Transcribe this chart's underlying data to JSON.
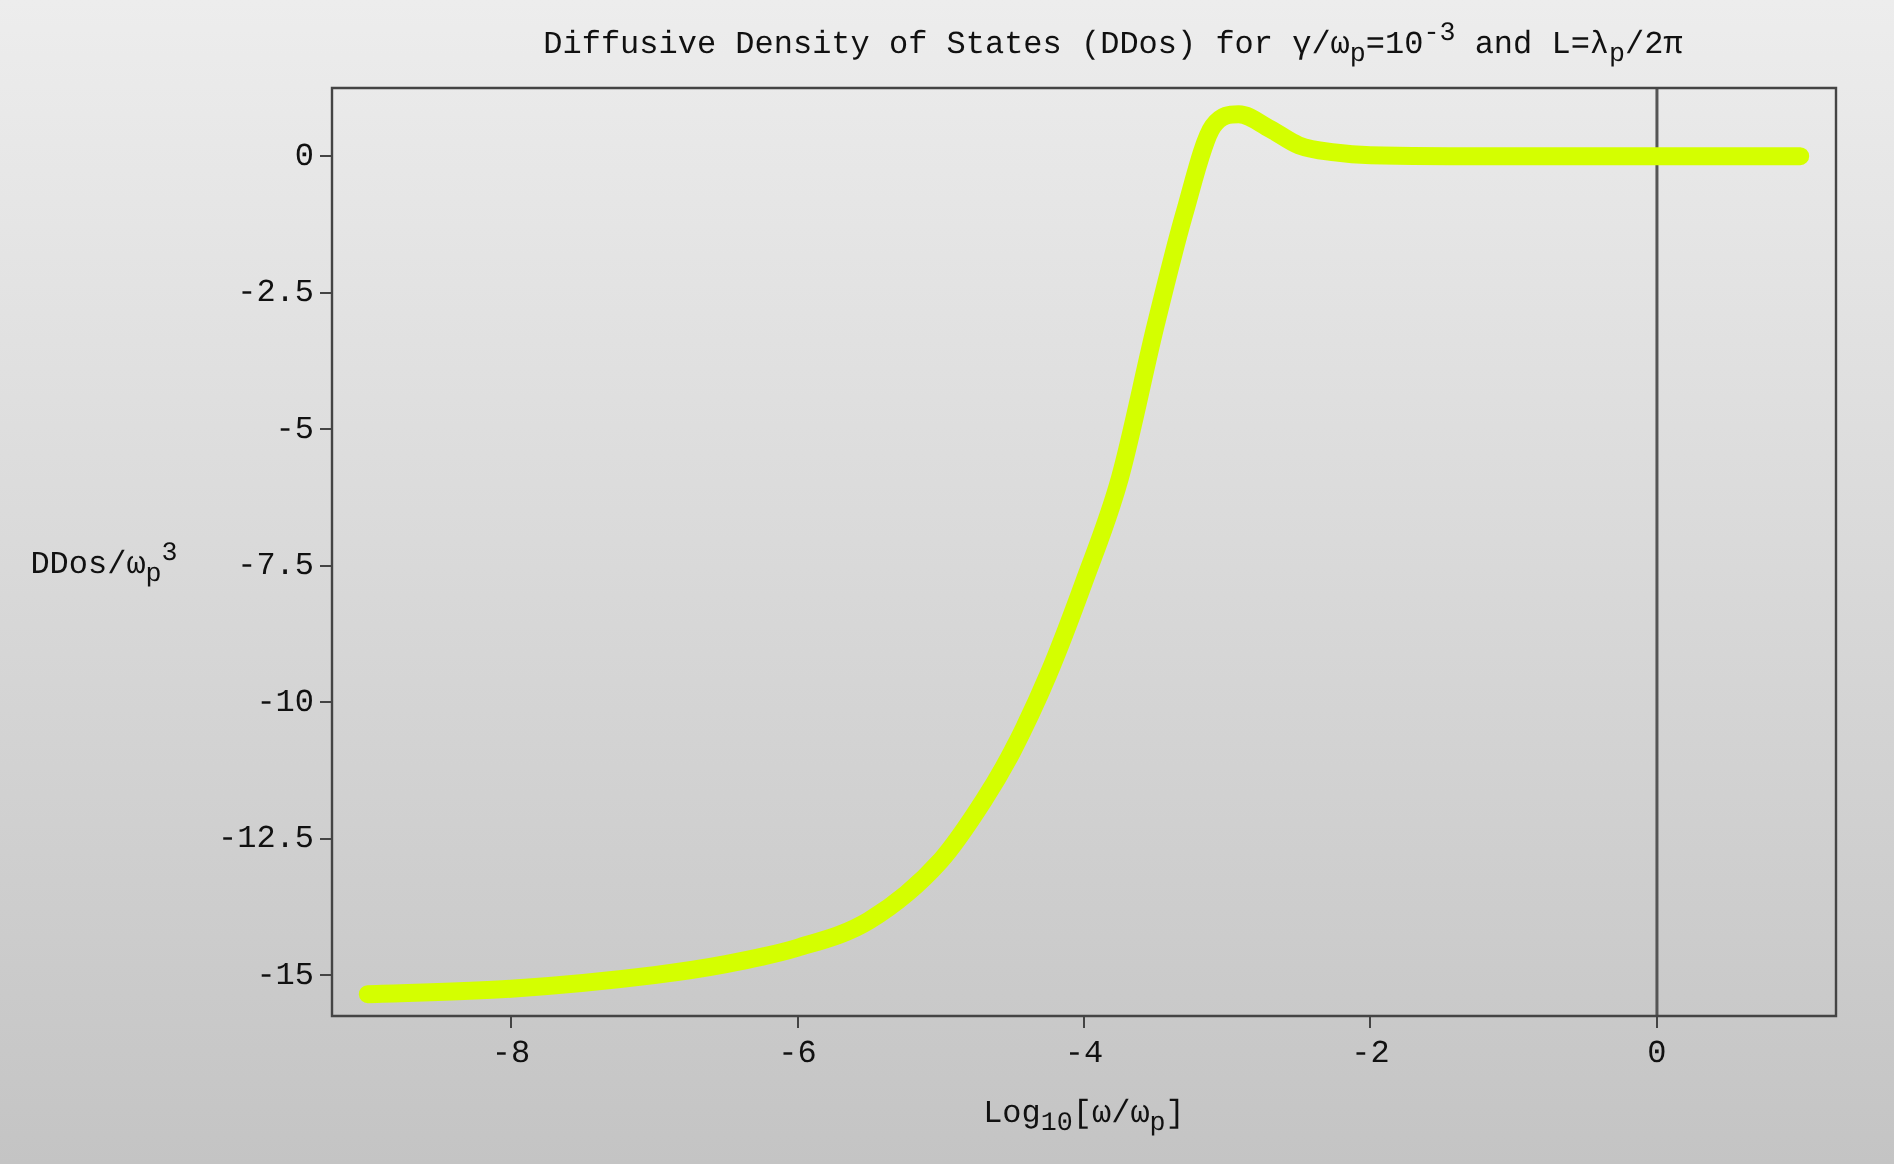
{
  "chart_data": {
    "type": "line",
    "title": "Diffusive Density of States (DDos) for γ/ω$_{p}$=10$^{-3}$ and L=λ$_{p}$/2π",
    "xlabel": "Log$_{10}$[ω/ω$_{p}$]",
    "ylabel": "DDos/ω$_{p}$$^{3}$",
    "x": [
      -9,
      -8,
      -7,
      -6.5,
      -6,
      -5.5,
      -5,
      -4.7,
      -4.5,
      -4.25,
      -4,
      -3.75,
      -3.5,
      -3.3,
      -3.1,
      -2.92,
      -2.7,
      -2.5,
      -2.25,
      -2,
      -1,
      0,
      1
    ],
    "series": [
      {
        "color": "#d4ff00",
        "values": [
          -15.35,
          -15.25,
          -15.0,
          -14.8,
          -14.5,
          -14.0,
          -12.9,
          -11.8,
          -10.9,
          -9.5,
          -7.8,
          -5.9,
          -3.1,
          -1.06,
          0.55,
          0.77,
          0.5,
          0.2,
          0.07,
          0.02,
          0,
          0,
          0
        ]
      }
    ],
    "xlim": [
      -9.25,
      1.25
    ],
    "xticks": [
      -8,
      -6,
      -4,
      -2,
      0
    ],
    "ylim": [
      -15.75,
      1.25
    ],
    "yticks": [
      0,
      -2.5,
      -5,
      -7.5,
      -10,
      -12.5,
      -15
    ],
    "ref_lines": [
      {
        "axis": "x",
        "value": 0,
        "color": "#555555"
      }
    ],
    "grid": false,
    "legend": false,
    "marker": "none",
    "line_style": "solid"
  }
}
